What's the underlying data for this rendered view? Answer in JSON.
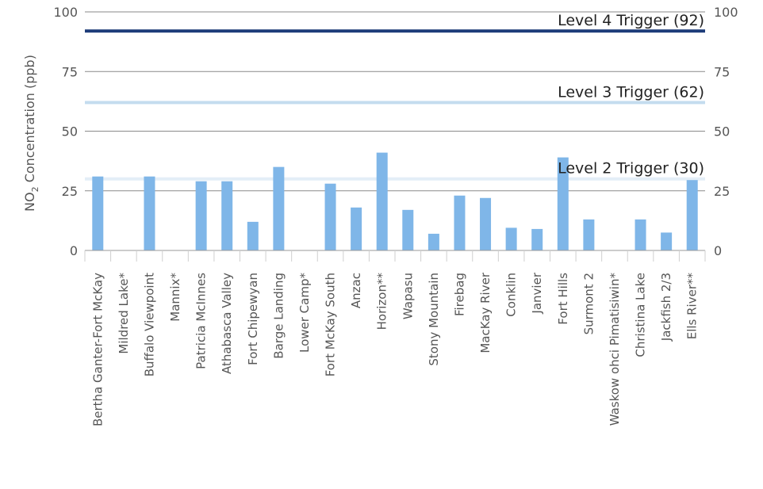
{
  "chart_data": {
    "type": "bar",
    "ylabel_main": "NO",
    "ylabel_sub": "2",
    "ylabel_rest": " Concentration (ppb)",
    "ylim": [
      0,
      100
    ],
    "yticks": [
      0,
      25,
      50,
      75,
      100
    ],
    "grid": true,
    "bar_color": "#7fb6e8",
    "categories": [
      "Bertha Ganter-Fort McKay",
      "Mildred Lake*",
      "Buffalo Viewpoint",
      "Mannix*",
      "Patricia McInnes",
      "Athabasca Valley",
      "Fort Chipewyan",
      "Barge Landing",
      "Lower Camp*",
      "Fort McKay South",
      "Anzac",
      "Horizon**",
      "Wapasu",
      "Stony Mountain",
      "Firebag",
      "MacKay River",
      "Conklin",
      "Janvier",
      "Fort Hills",
      "Surmont 2",
      "Waskow ohci Pimatisiwin*",
      "Christina Lake",
      "Jackfish 2/3",
      "Ells River**"
    ],
    "values": [
      31,
      null,
      31,
      null,
      29,
      29,
      12,
      35,
      null,
      28,
      18,
      41,
      17,
      7,
      23,
      22,
      9.5,
      9,
      39,
      13,
      null,
      13,
      7.5,
      29.5
    ],
    "triggers": [
      {
        "label": "Level 4 Trigger (92)",
        "value": 92,
        "color": "#1f3d7a"
      },
      {
        "label": "Level 3 Trigger (62)",
        "value": 62,
        "color": "#c4dcef"
      },
      {
        "label": "Level 2 Trigger (30)",
        "value": 30,
        "color": "#e3eef7"
      }
    ]
  }
}
